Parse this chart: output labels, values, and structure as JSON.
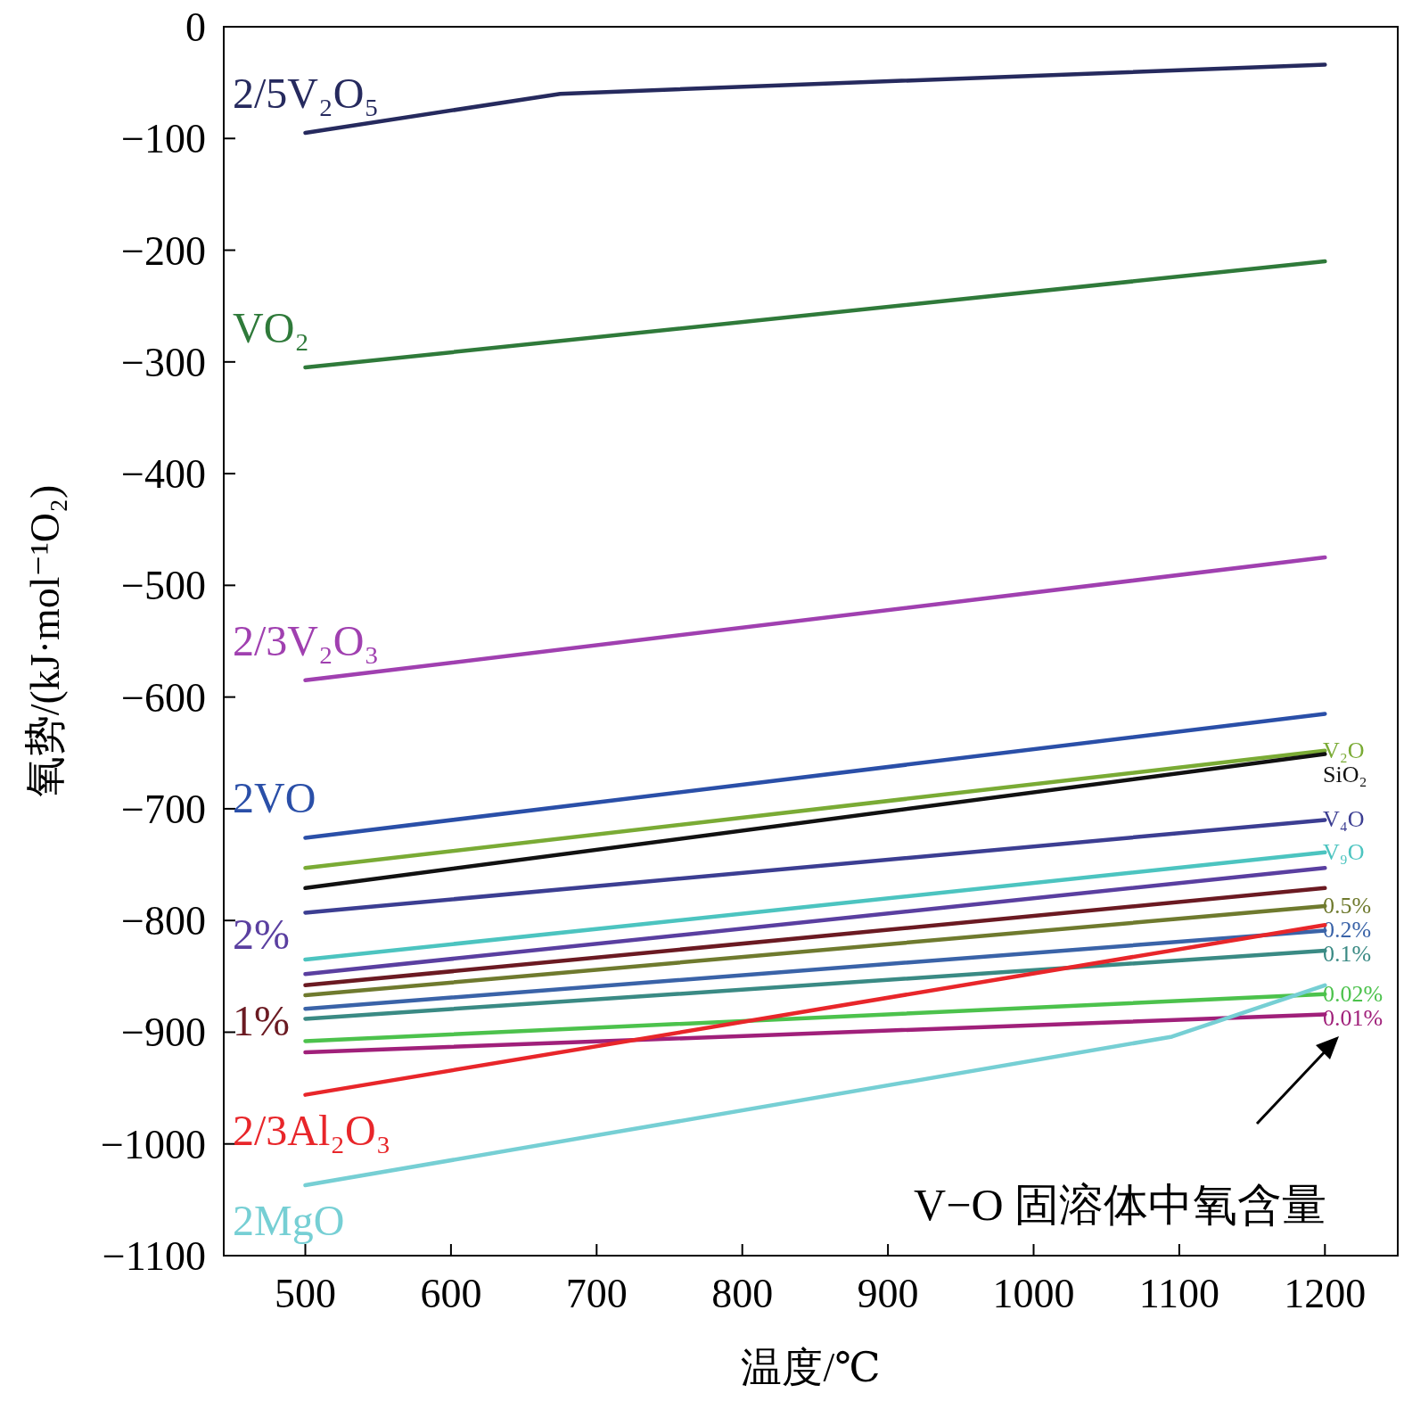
{
  "chart_data": {
    "type": "line",
    "xlabel": "温度/℃",
    "ylabel": "氧势/(kJ·mol⁻¹O₂)",
    "xlim": [
      444,
      1250
    ],
    "ylim": [
      -1100,
      0
    ],
    "xticks": [
      500,
      600,
      700,
      800,
      900,
      1000,
      1100,
      1200
    ],
    "yticks": [
      0,
      {
        "value": -100,
        "label": "−100"
      },
      {
        "value": -200,
        "label": "−200"
      },
      {
        "value": -300,
        "label": "−300"
      },
      {
        "value": -400,
        "label": "−400"
      },
      {
        "value": -500,
        "label": "−500"
      },
      {
        "value": -600,
        "label": "−600"
      },
      {
        "value": -700,
        "label": "−700"
      },
      {
        "value": -800,
        "label": "−800"
      },
      {
        "value": -900,
        "label": "−900"
      },
      {
        "value": -1000,
        "label": "−1000"
      },
      {
        "value": -1100,
        "label": "−1100"
      }
    ],
    "grid": false,
    "legend": false,
    "marker": "none",
    "line_style": "solid",
    "annotations": [
      "V−O 固溶体中氧含量"
    ],
    "series": [
      {
        "name": "2/5V₂O₅",
        "color": "#262a5e",
        "x": [
          500,
          675,
          1200
        ],
        "values": [
          -95,
          -60,
          -34
        ]
      },
      {
        "name": "VO₂",
        "color": "#2f7a3a",
        "x": [
          500,
          1200
        ],
        "values": [
          -305,
          -210
        ]
      },
      {
        "name": "2/3V₂O₃",
        "color": "#a040b0",
        "x": [
          500,
          1200
        ],
        "values": [
          -585,
          -475
        ]
      },
      {
        "name": "2VO",
        "color": "#2a4fa8",
        "x": [
          500,
          1200
        ],
        "values": [
          -726,
          -615
        ]
      },
      {
        "name": "V₂O",
        "color": "#7aab35",
        "x": [
          500,
          1200
        ],
        "values": [
          -753,
          -648
        ]
      },
      {
        "name": "SiO₂",
        "color": "#111111",
        "x": [
          500,
          1200
        ],
        "values": [
          -771,
          -651
        ]
      },
      {
        "name": "V₄O",
        "color": "#3c3e92",
        "x": [
          500,
          1200
        ],
        "values": [
          -793,
          -710
        ]
      },
      {
        "name": "V₉O",
        "color": "#4cc4c0",
        "x": [
          500,
          1200
        ],
        "values": [
          -835,
          -739
        ]
      },
      {
        "name": "2%",
        "color": "#5a3fa0",
        "x": [
          500,
          1200
        ],
        "values": [
          -848,
          -753
        ]
      },
      {
        "name": "1%",
        "color": "#6b1a22",
        "x": [
          500,
          1200
        ],
        "values": [
          -858,
          -771
        ]
      },
      {
        "name": "0.5%",
        "color": "#6f7a2e",
        "x": [
          500,
          1200
        ],
        "values": [
          -867,
          -787
        ]
      },
      {
        "name": "0.2%",
        "color": "#3a63a8",
        "x": [
          500,
          1200
        ],
        "values": [
          -879,
          -809
        ]
      },
      {
        "name": "0.1%",
        "color": "#3a8a84",
        "x": [
          500,
          1200
        ],
        "values": [
          -888,
          -827
        ]
      },
      {
        "name": "0.02%",
        "color": "#4cc24c",
        "x": [
          500,
          1200
        ],
        "values": [
          -908,
          -866
        ]
      },
      {
        "name": "0.01%",
        "color": "#a0207a",
        "x": [
          500,
          1200
        ],
        "values": [
          -918,
          -884
        ]
      },
      {
        "name": "2/3Al₂O₃",
        "color": "#e8262a",
        "x": [
          500,
          1200
        ],
        "values": [
          -956,
          -804
        ]
      },
      {
        "name": "2MgO",
        "color": "#76cfd4",
        "x": [
          500,
          1095,
          1200
        ],
        "values": [
          -1037,
          -904,
          -858
        ]
      }
    ]
  }
}
